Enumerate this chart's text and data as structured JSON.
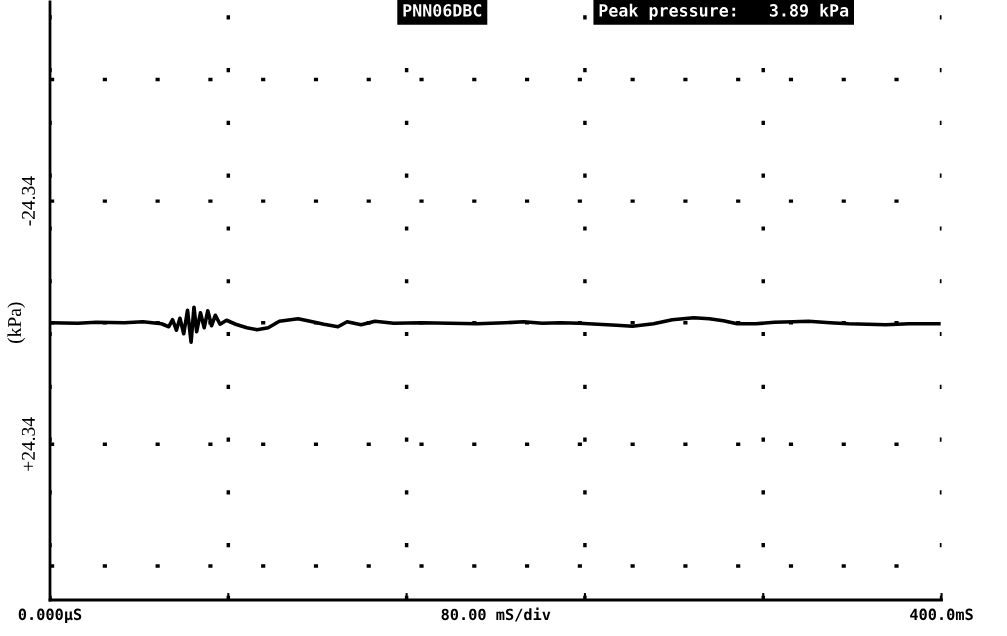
{
  "chart_data": {
    "type": "line",
    "ylabel": "(kPa)",
    "xlabel": "80.00 mS/div",
    "annotations": [
      "PNN06DBC",
      "Peak pressure:   3.89 kPa"
    ],
    "x": [
      0,
      12.5,
      20.8,
      33.3,
      41.7,
      50.0,
      53.3,
      55.0,
      56.7,
      58.3,
      60.0,
      61.7,
      63.3,
      64.6,
      65.8,
      67.5,
      69.2,
      70.8,
      72.5,
      74.2,
      76.3,
      79.2,
      83.3,
      88.3,
      92.9,
      97.9,
      102.9,
      111.3,
      116.7,
      122.9,
      129.2,
      133.3,
      139.6,
      145.8,
      154.2,
      166.7,
      179.2,
      191.7,
      204.2,
      212.5,
      220.8,
      229.2,
      237.5,
      245.8,
      254.2,
      261.3,
      270.8,
      279.2,
      288.8,
      295.8,
      302.1,
      308.3,
      316.7,
      325.0,
      333.3,
      340.4,
      350.0,
      358.3,
      366.7,
      375.0,
      385.4,
      398.8
    ],
    "series": [
      {
        "color": "#000000",
        "values": [
          0,
          0.1,
          -0.1,
          0,
          -0.2,
          0.2,
          0.8,
          -0.6,
          1.5,
          -0.9,
          2.2,
          -2.5,
          3.89,
          -3.1,
          1.8,
          -2.0,
          1.0,
          -2.4,
          0.6,
          -1.5,
          0.3,
          -0.5,
          0.3,
          1.0,
          1.4,
          1.0,
          -0.3,
          -0.8,
          -0.3,
          0.3,
          0.8,
          -0.2,
          0.4,
          -0.3,
          0.1,
          0,
          0.1,
          0.2,
          0,
          -0.2,
          0.1,
          0,
          0.1,
          0.3,
          0.5,
          0.7,
          0.2,
          -0.6,
          -1.0,
          -0.8,
          -0.4,
          0.2,
          0.2,
          -0.1,
          -0.2,
          -0.3,
          0,
          0.2,
          0.3,
          0.4,
          0.2,
          0.2
        ]
      }
    ],
    "xlim": [
      0,
      400
    ],
    "xticks": [
      {
        "value": 0,
        "label": "0.000µS"
      },
      {
        "value": 80,
        "label": null
      },
      {
        "value": 160,
        "label": null
      },
      {
        "value": 240,
        "label": null
      },
      {
        "value": 320,
        "label": null
      },
      {
        "value": 400,
        "label": "400.0mS"
      }
    ],
    "ylim": [
      55.5,
      -64.2
    ],
    "yticks": [
      {
        "value": -48.68,
        "label": null
      },
      {
        "value": -24.34,
        "label": "-24.34"
      },
      {
        "value": 0,
        "label": null
      },
      {
        "value": 24.34,
        "label": "+24.34"
      },
      {
        "value": 48.68,
        "label": null
      }
    ],
    "grid": true,
    "legend": false
  }
}
